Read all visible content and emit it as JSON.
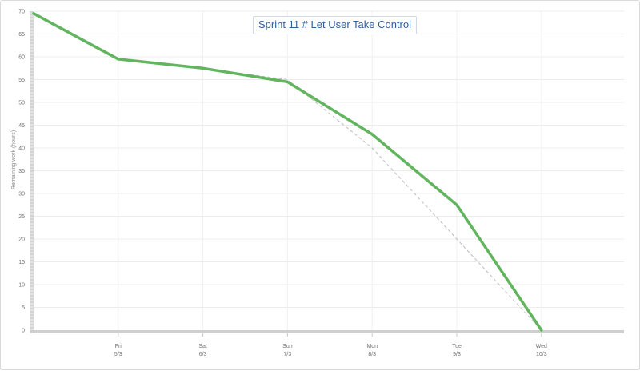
{
  "chart_data": {
    "type": "line",
    "title": "Sprint 11 # Let User Take Control",
    "ylabel": "Remaining work (hours)",
    "xlabel": "",
    "ylim": [
      0,
      70
    ],
    "yticks": [
      0,
      5,
      10,
      15,
      20,
      25,
      30,
      35,
      40,
      45,
      50,
      55,
      60,
      65,
      70
    ],
    "categories": [
      {
        "day": "",
        "date": ""
      },
      {
        "day": "Fri",
        "date": "5/3"
      },
      {
        "day": "Sat",
        "date": "6/3"
      },
      {
        "day": "Sun",
        "date": "7/3"
      },
      {
        "day": "Mon",
        "date": "8/3"
      },
      {
        "day": "Tue",
        "date": "9/3"
      },
      {
        "day": "Wed",
        "date": "10/3"
      }
    ],
    "series": [
      {
        "style": "actual",
        "color": "#62b55e",
        "values": [
          69.5,
          59.5,
          57.5,
          54.5,
          43,
          27.5,
          0
        ]
      },
      {
        "style": "ideal",
        "color": "#bdbdbd",
        "values": [
          69.5,
          59.5,
          57.5,
          55,
          40,
          20,
          0
        ]
      }
    ],
    "grid": true
  }
}
